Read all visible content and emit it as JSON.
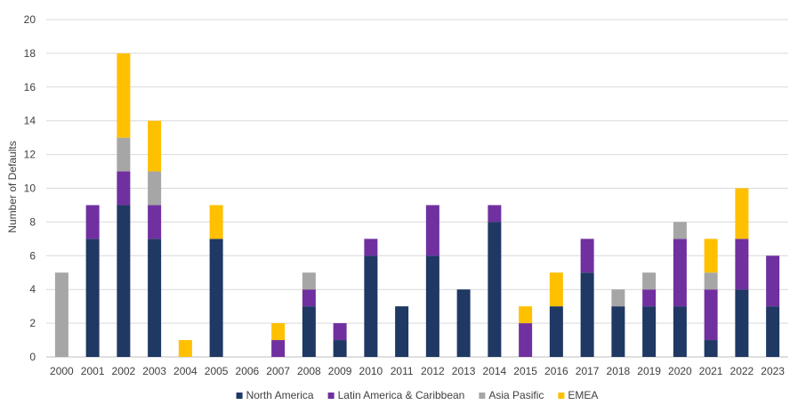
{
  "chart_data": {
    "type": "bar",
    "stacked": true,
    "title": "",
    "xlabel": "",
    "ylabel": "Number of Defaults",
    "ylim": [
      0,
      20
    ],
    "yticks": [
      0,
      2,
      4,
      6,
      8,
      10,
      12,
      14,
      16,
      18,
      20
    ],
    "grid": "horizontal",
    "legend_position": "bottom",
    "categories": [
      "2000",
      "2001",
      "2002",
      "2003",
      "2004",
      "2005",
      "2006",
      "2007",
      "2008",
      "2009",
      "2010",
      "2011",
      "2012",
      "2013",
      "2014",
      "2015",
      "2016",
      "2017",
      "2018",
      "2019",
      "2020",
      "2021",
      "2022",
      "2023"
    ],
    "series": [
      {
        "name": "North America",
        "color": "#1f3864",
        "values": [
          0,
          7,
          9,
          7,
          0,
          7,
          0,
          0,
          3,
          1,
          6,
          3,
          6,
          4,
          8,
          0,
          3,
          5,
          3,
          3,
          3,
          1,
          4,
          3
        ]
      },
      {
        "name": "Latin America & Caribbean",
        "color": "#7030a0",
        "values": [
          0,
          2,
          2,
          2,
          0,
          0,
          0,
          1,
          1,
          1,
          1,
          0,
          3,
          0,
          1,
          2,
          0,
          2,
          0,
          1,
          4,
          3,
          3,
          3
        ]
      },
      {
        "name": "Asia Pasific",
        "color": "#a6a6a6",
        "values": [
          5,
          0,
          2,
          2,
          0,
          0,
          0,
          0,
          1,
          0,
          0,
          0,
          0,
          0,
          0,
          0,
          0,
          0,
          1,
          1,
          1,
          1,
          0,
          0
        ]
      },
      {
        "name": "EMEA",
        "color": "#ffc000",
        "values": [
          0,
          0,
          5,
          3,
          1,
          2,
          0,
          1,
          0,
          0,
          0,
          0,
          0,
          0,
          0,
          1,
          2,
          0,
          0,
          0,
          0,
          2,
          3,
          0
        ]
      }
    ]
  }
}
